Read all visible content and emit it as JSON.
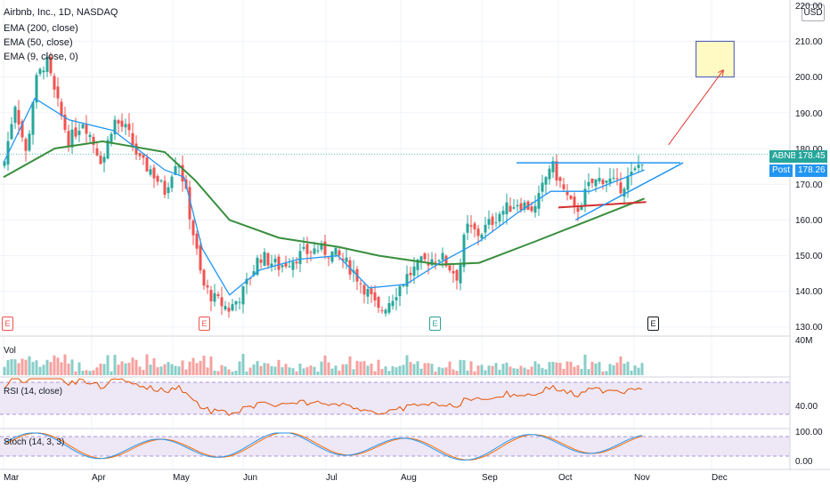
{
  "header": {
    "symbol_line": "Airbnb, Inc., 1D, NASDAQ",
    "indicators": [
      "EMA (200, close)",
      "EMA (50, close)",
      "EMA (9, close, 0)"
    ]
  },
  "price_axis": {
    "currency": "USD",
    "ticks": [
      "220.00",
      "210.00",
      "200.00",
      "190.00",
      "180.00",
      "170.00",
      "160.00",
      "150.00",
      "140.00",
      "130.00"
    ]
  },
  "price_tags": {
    "symbol_label": "ABNB",
    "symbol_value": "178.45",
    "post_label": "Post",
    "post_value": "178.26"
  },
  "volume_pane": {
    "label": "Vol",
    "axis_max": "40M"
  },
  "rsi_pane": {
    "label": "RSI (14, close)",
    "axis_tick": "40.00"
  },
  "stoch_pane": {
    "label": "Stoch (14, 3, 3)",
    "axis_ticks": [
      "100.00",
      "0.00"
    ]
  },
  "time_axis": [
    "Mar",
    "Apr",
    "May",
    "Jun",
    "Jul",
    "Aug",
    "Sep",
    "Oct",
    "Nov",
    "Dec"
  ],
  "earnings_markers": [
    "E",
    "E",
    "E",
    "E"
  ],
  "colors": {
    "up": "#26a69a",
    "down": "#ef5350",
    "ema_fast": "#2196f3",
    "ema_slow": "#388e3c",
    "rsi_line": "#e65100",
    "rsi_band": "#ede7f6",
    "stoch_k": "#2196f3",
    "stoch_d": "#ff6d00",
    "target_box": "#fff9c4",
    "target_border": "#3f51b5"
  },
  "chart_data": {
    "type": "candlestick",
    "title": "Airbnb, Inc., 1D, NASDAQ",
    "ylim": [
      128,
      222
    ],
    "months": [
      "Mar",
      "Apr",
      "May",
      "Jun",
      "Jul",
      "Aug",
      "Sep",
      "Oct",
      "Nov",
      "Dec"
    ],
    "close_path": [
      {
        "x": "Mar 1",
        "y": 175
      },
      {
        "x": "Mar 5",
        "y": 193
      },
      {
        "x": "Mar 9",
        "y": 178
      },
      {
        "x": "Mar 12",
        "y": 198
      },
      {
        "x": "Mar 16",
        "y": 205
      },
      {
        "x": "Mar 19",
        "y": 195
      },
      {
        "x": "Mar 24",
        "y": 182
      },
      {
        "x": "Mar 29",
        "y": 188
      },
      {
        "x": "Apr 5",
        "y": 176
      },
      {
        "x": "Apr 9",
        "y": 188
      },
      {
        "x": "Apr 14",
        "y": 185
      },
      {
        "x": "Apr 19",
        "y": 176
      },
      {
        "x": "Apr 23",
        "y": 174
      },
      {
        "x": "Apr 28",
        "y": 168
      },
      {
        "x": "May 3",
        "y": 178
      },
      {
        "x": "May 6",
        "y": 170
      },
      {
        "x": "May 11",
        "y": 153
      },
      {
        "x": "May 14",
        "y": 142
      },
      {
        "x": "May 19",
        "y": 138
      },
      {
        "x": "May 26",
        "y": 135
      },
      {
        "x": "Jun 1",
        "y": 140
      },
      {
        "x": "Jun 7",
        "y": 150
      },
      {
        "x": "Jun 14",
        "y": 147
      },
      {
        "x": "Jun 21",
        "y": 150
      },
      {
        "x": "Jun 28",
        "y": 152
      },
      {
        "x": "Jul 6",
        "y": 150
      },
      {
        "x": "Jul 12",
        "y": 146
      },
      {
        "x": "Jul 19",
        "y": 139
      },
      {
        "x": "Jul 23",
        "y": 134
      },
      {
        "x": "Jul 28",
        "y": 138
      },
      {
        "x": "Aug 3",
        "y": 144
      },
      {
        "x": "Aug 9",
        "y": 148
      },
      {
        "x": "Aug 16",
        "y": 150
      },
      {
        "x": "Aug 23",
        "y": 144
      },
      {
        "x": "Aug 26",
        "y": 158
      },
      {
        "x": "Aug 31",
        "y": 156
      },
      {
        "x": "Sep 8",
        "y": 162
      },
      {
        "x": "Sep 15",
        "y": 165
      },
      {
        "x": "Sep 22",
        "y": 163
      },
      {
        "x": "Sep 28",
        "y": 176
      },
      {
        "x": "Oct 4",
        "y": 167
      },
      {
        "x": "Oct 8",
        "y": 162
      },
      {
        "x": "Oct 14",
        "y": 170
      },
      {
        "x": "Oct 20",
        "y": 172
      },
      {
        "x": "Oct 26",
        "y": 169
      },
      {
        "x": "Nov 1",
        "y": 173
      },
      {
        "x": "Nov 5",
        "y": 178.45
      }
    ],
    "ema_fast_path": [
      {
        "x": "Mar 1",
        "y": 176
      },
      {
        "x": "Mar 12",
        "y": 194
      },
      {
        "x": "Mar 24",
        "y": 188
      },
      {
        "x": "Apr 9",
        "y": 185
      },
      {
        "x": "Apr 28",
        "y": 174
      },
      {
        "x": "May 6",
        "y": 172
      },
      {
        "x": "May 14",
        "y": 152
      },
      {
        "x": "May 26",
        "y": 139
      },
      {
        "x": "Jun 7",
        "y": 146
      },
      {
        "x": "Jun 21",
        "y": 149
      },
      {
        "x": "Jul 6",
        "y": 150
      },
      {
        "x": "Jul 19",
        "y": 141
      },
      {
        "x": "Aug 3",
        "y": 142
      },
      {
        "x": "Aug 16",
        "y": 148
      },
      {
        "x": "Aug 31",
        "y": 154
      },
      {
        "x": "Sep 15",
        "y": 162
      },
      {
        "x": "Sep 28",
        "y": 168
      },
      {
        "x": "Oct 14",
        "y": 168
      },
      {
        "x": "Nov 5",
        "y": 174
      }
    ],
    "ema_slow_path": [
      {
        "x": "Mar 1",
        "y": 172
      },
      {
        "x": "Mar 19",
        "y": 180
      },
      {
        "x": "Apr 5",
        "y": 182
      },
      {
        "x": "Apr 28",
        "y": 179
      },
      {
        "x": "May 11",
        "y": 171
      },
      {
        "x": "May 26",
        "y": 160
      },
      {
        "x": "Jun 14",
        "y": 155
      },
      {
        "x": "Jul 6",
        "y": 152.5
      },
      {
        "x": "Jul 23",
        "y": 150
      },
      {
        "x": "Aug 16",
        "y": 147.5
      },
      {
        "x": "Aug 31",
        "y": 148
      },
      {
        "x": "Sep 22",
        "y": 154
      },
      {
        "x": "Oct 14",
        "y": 160
      },
      {
        "x": "Nov 5",
        "y": 166
      }
    ],
    "annotations": {
      "resistance_level": 176,
      "support_red": {
        "from": {
          "x": "Oct 1",
          "y": 163.5
        },
        "to": {
          "x": "Nov 5",
          "y": 165
        }
      },
      "rising_trendline": {
        "from": {
          "x": "Oct 8",
          "y": 160
        },
        "to": {
          "x": "Nov 20",
          "y": 176
        }
      },
      "target_box": {
        "x_from": "Nov 25",
        "x_to": "Dec 10",
        "y_from": 200,
        "y_to": 210
      },
      "arrow": {
        "from": {
          "x": "Nov 5",
          "y": 181
        },
        "to": {
          "x": "Nov 27",
          "y": 202
        }
      }
    },
    "volume_max_label": "40M",
    "rsi_level": 40,
    "stoch_range": [
      0,
      100
    ]
  }
}
